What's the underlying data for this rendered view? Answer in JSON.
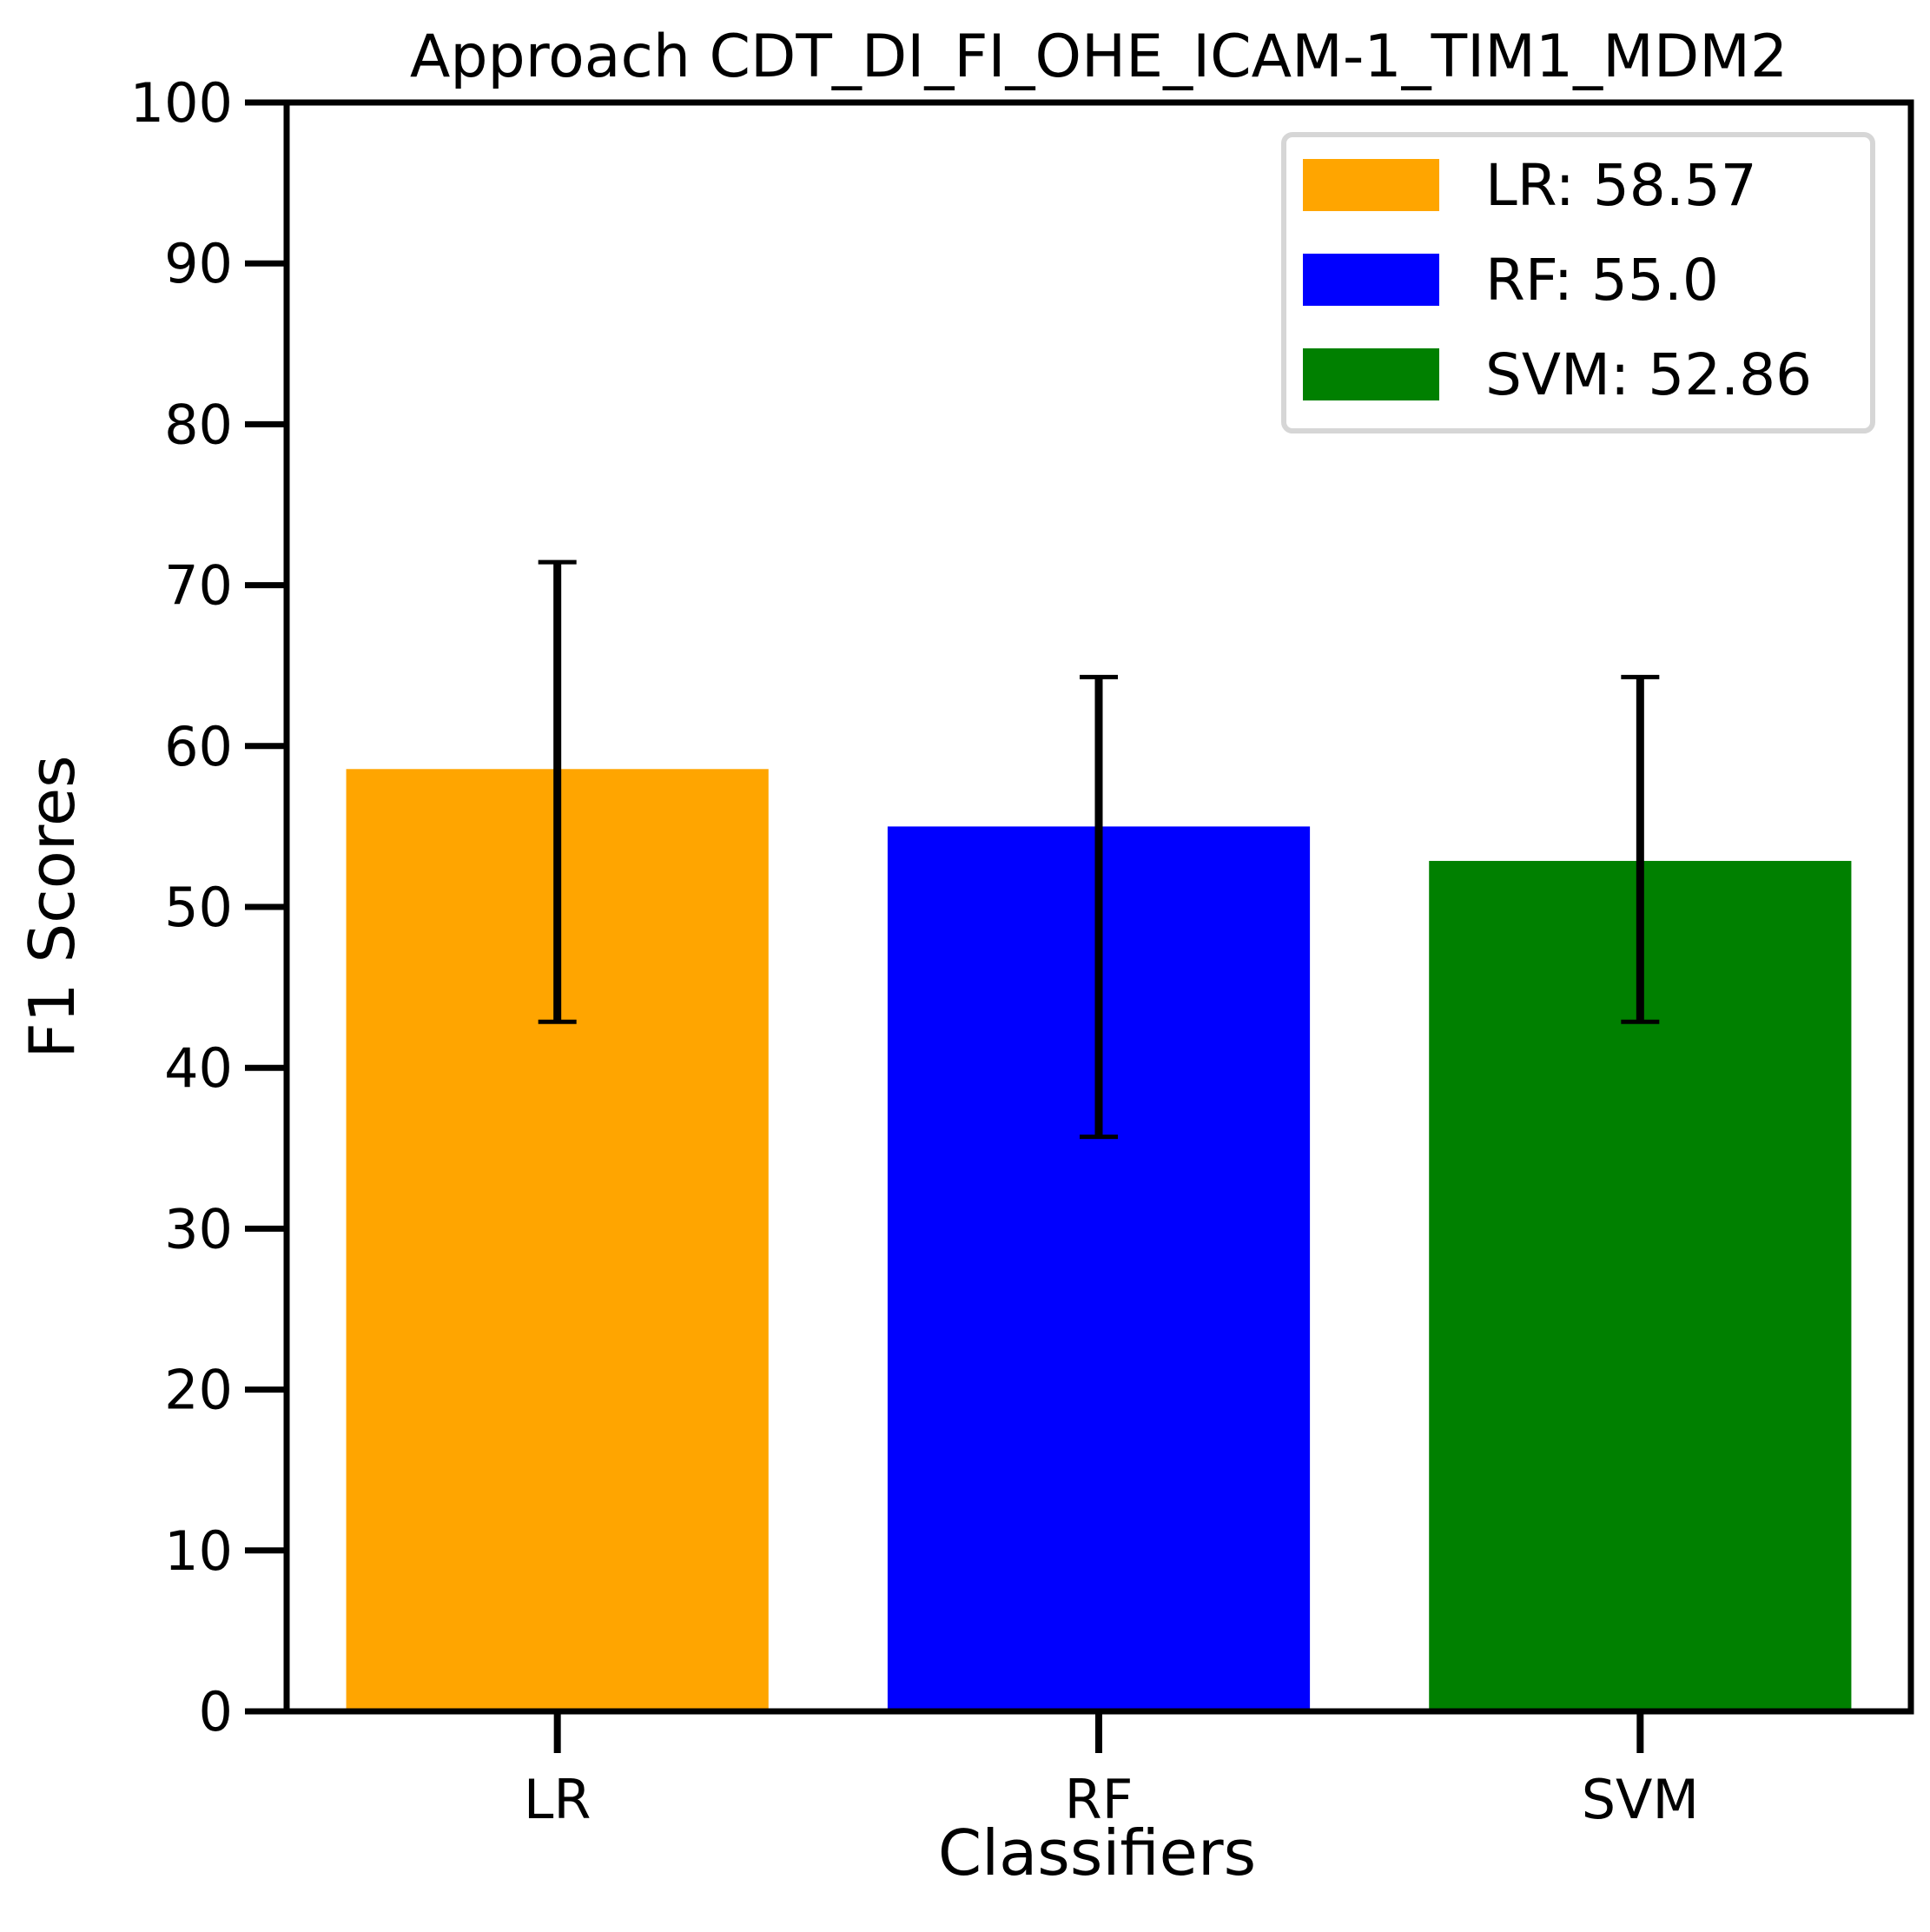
{
  "chart_data": {
    "type": "bar",
    "title": "Approach CDT_DI_FI_OHE_ICAM-1_TIM1_MDM2",
    "xlabel": "Classifiers",
    "ylabel": "F1 Scores",
    "ylim": [
      0,
      100
    ],
    "yticks": [
      0,
      10,
      20,
      30,
      40,
      50,
      60,
      70,
      80,
      90,
      100
    ],
    "categories": [
      "LR",
      "RF",
      "SVM"
    ],
    "values": [
      58.57,
      55.0,
      52.86
    ],
    "error_low": [
      42.86,
      35.71,
      42.86
    ],
    "error_high": [
      71.43,
      64.29,
      64.29
    ],
    "colors": [
      "#ffa500",
      "#0000ff",
      "#008000"
    ],
    "legend": {
      "placement": "top-right",
      "entries": [
        "LR: 58.57",
        "RF: 55.0",
        "SVM: 52.86"
      ]
    },
    "grid": false
  }
}
